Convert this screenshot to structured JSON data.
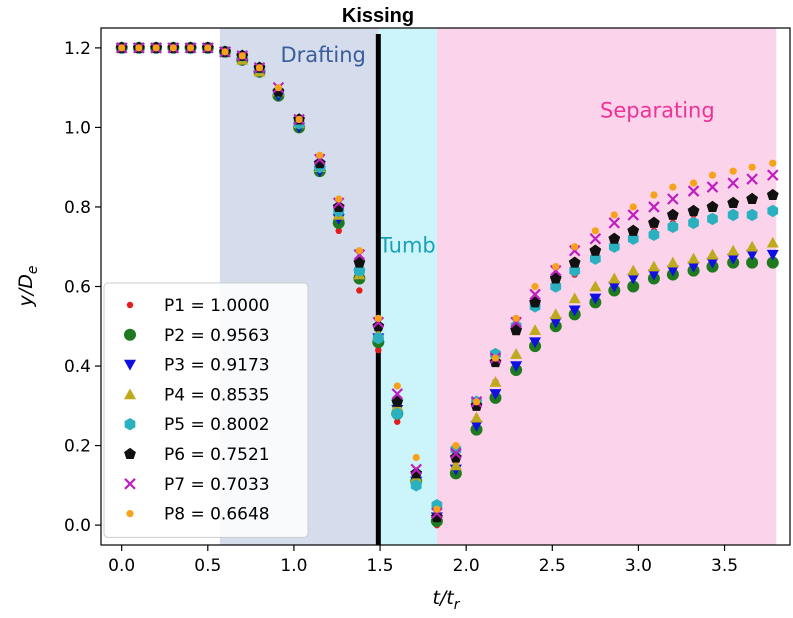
{
  "chart_data": {
    "type": "scatter",
    "title": "Kissing",
    "xlabel": "t/t",
    "xlabel_sub": "r",
    "ylabel": "y/D",
    "ylabel_sub": "e",
    "xlim": [
      -0.12,
      3.88
    ],
    "ylim": [
      -0.05,
      1.25
    ],
    "x_ticks": [
      "0.0",
      "0.5",
      "1.0",
      "1.5",
      "2.0",
      "2.5",
      "3.0",
      "3.5"
    ],
    "y_ticks": [
      "0.0",
      "0.2",
      "0.4",
      "0.6",
      "0.8",
      "1.0",
      "1.2"
    ],
    "grid": false,
    "legend_position": "lower-left",
    "regions": [
      {
        "label": "Drafting",
        "x_start": 0.57,
        "x_end": 1.49,
        "fill": "#d5dcec",
        "text_color": "#3a5d9c",
        "label_x": 1.17,
        "label_y": 1.18
      },
      {
        "label": "Tumbling",
        "x_start": 1.49,
        "x_end": 1.83,
        "fill": "#cbf4fb",
        "text_color": "#1aa3b8",
        "label_x": 1.77,
        "label_y": 0.7
      },
      {
        "label": "Separating",
        "x_start": 1.83,
        "x_end": 3.8,
        "fill": "#fbd3ea",
        "text_color": "#f03296",
        "label_x": 3.11,
        "label_y": 1.04
      }
    ],
    "kissing_line_x": 1.49,
    "x": [
      0.0,
      0.1,
      0.2,
      0.3,
      0.4,
      0.5,
      0.6,
      0.7,
      0.8,
      0.91,
      1.03,
      1.15,
      1.26,
      1.38,
      1.49,
      1.6,
      1.71,
      1.83,
      1.94,
      2.06,
      2.17,
      2.29,
      2.4,
      2.52,
      2.63,
      2.75,
      2.86,
      2.97,
      3.09,
      3.2,
      3.32,
      3.43,
      3.55,
      3.66,
      3.78
    ],
    "series": [
      {
        "name": "P1 = 1.0000",
        "marker": "point",
        "color": "#e41a1c",
        "values": [
          1.2,
          1.2,
          1.2,
          1.2,
          1.2,
          1.2,
          1.19,
          1.17,
          1.14,
          1.08,
          1.0,
          0.89,
          0.74,
          0.59,
          0.44,
          0.26,
          0.11,
          0.0,
          0.16,
          0.3,
          0.36,
          0.49,
          0.55,
          0.6,
          0.63,
          0.67,
          0.7,
          0.72,
          0.74,
          0.76,
          0.78,
          0.8,
          0.81,
          0.82,
          0.83
        ]
      },
      {
        "name": "P2 = 0.9563",
        "marker": "circle",
        "color": "#1f7a1f",
        "values": [
          1.2,
          1.2,
          1.2,
          1.2,
          1.2,
          1.2,
          1.19,
          1.17,
          1.14,
          1.08,
          1.0,
          0.89,
          0.76,
          0.62,
          0.46,
          0.28,
          0.11,
          0.01,
          0.13,
          0.24,
          0.32,
          0.39,
          0.45,
          0.5,
          0.53,
          0.56,
          0.59,
          0.6,
          0.62,
          0.63,
          0.64,
          0.65,
          0.66,
          0.66,
          0.66
        ]
      },
      {
        "name": "P3 = 0.9173",
        "marker": "triangle-down",
        "color": "#1010e0",
        "values": [
          1.2,
          1.2,
          1.2,
          1.2,
          1.2,
          1.2,
          1.19,
          1.17,
          1.14,
          1.08,
          1.0,
          0.89,
          0.77,
          0.63,
          0.47,
          0.29,
          0.11,
          0.02,
          0.14,
          0.25,
          0.33,
          0.4,
          0.46,
          0.51,
          0.54,
          0.57,
          0.6,
          0.62,
          0.63,
          0.64,
          0.65,
          0.66,
          0.67,
          0.68,
          0.68
        ]
      },
      {
        "name": "P4 = 0.8535",
        "marker": "triangle-up",
        "color": "#bfa91d",
        "values": [
          1.2,
          1.2,
          1.2,
          1.2,
          1.2,
          1.2,
          1.19,
          1.17,
          1.14,
          1.09,
          1.01,
          0.9,
          0.78,
          0.63,
          0.48,
          0.3,
          0.12,
          0.03,
          0.15,
          0.27,
          0.36,
          0.43,
          0.49,
          0.53,
          0.57,
          0.6,
          0.62,
          0.64,
          0.65,
          0.66,
          0.67,
          0.68,
          0.69,
          0.7,
          0.71
        ]
      },
      {
        "name": "P5 = 0.8002",
        "marker": "hexagon",
        "color": "#2ab0bf",
        "values": [
          1.2,
          1.2,
          1.2,
          1.2,
          1.2,
          1.2,
          1.19,
          1.18,
          1.15,
          1.09,
          1.01,
          0.9,
          0.79,
          0.64,
          0.47,
          0.28,
          0.1,
          0.05,
          0.19,
          0.31,
          0.43,
          0.5,
          0.55,
          0.6,
          0.64,
          0.67,
          0.7,
          0.72,
          0.73,
          0.75,
          0.76,
          0.77,
          0.78,
          0.78,
          0.79
        ]
      },
      {
        "name": "P6 = 0.7521",
        "marker": "pentagon",
        "color": "#111111",
        "values": [
          1.2,
          1.2,
          1.2,
          1.2,
          1.2,
          1.2,
          1.19,
          1.18,
          1.15,
          1.09,
          1.02,
          0.91,
          0.8,
          0.66,
          0.5,
          0.31,
          0.13,
          0.02,
          0.17,
          0.3,
          0.41,
          0.49,
          0.56,
          0.62,
          0.66,
          0.69,
          0.72,
          0.74,
          0.76,
          0.78,
          0.79,
          0.8,
          0.81,
          0.82,
          0.83
        ]
      },
      {
        "name": "P7 = 0.7033",
        "marker": "x",
        "color": "#bf1fbf",
        "values": [
          1.2,
          1.2,
          1.2,
          1.2,
          1.2,
          1.2,
          1.19,
          1.18,
          1.15,
          1.1,
          1.02,
          0.92,
          0.81,
          0.68,
          0.51,
          0.33,
          0.14,
          0.03,
          0.18,
          0.31,
          0.42,
          0.51,
          0.58,
          0.64,
          0.69,
          0.72,
          0.76,
          0.78,
          0.8,
          0.82,
          0.84,
          0.85,
          0.86,
          0.87,
          0.88
        ]
      },
      {
        "name": "P8 = 0.6648",
        "marker": "point-large",
        "color": "#f7a21b",
        "values": [
          1.2,
          1.2,
          1.2,
          1.2,
          1.2,
          1.2,
          1.19,
          1.18,
          1.15,
          1.1,
          1.02,
          0.93,
          0.82,
          0.69,
          0.52,
          0.35,
          0.17,
          0.04,
          0.2,
          0.31,
          0.42,
          0.52,
          0.6,
          0.65,
          0.7,
          0.74,
          0.78,
          0.8,
          0.83,
          0.85,
          0.86,
          0.88,
          0.89,
          0.9,
          0.91
        ]
      }
    ]
  }
}
